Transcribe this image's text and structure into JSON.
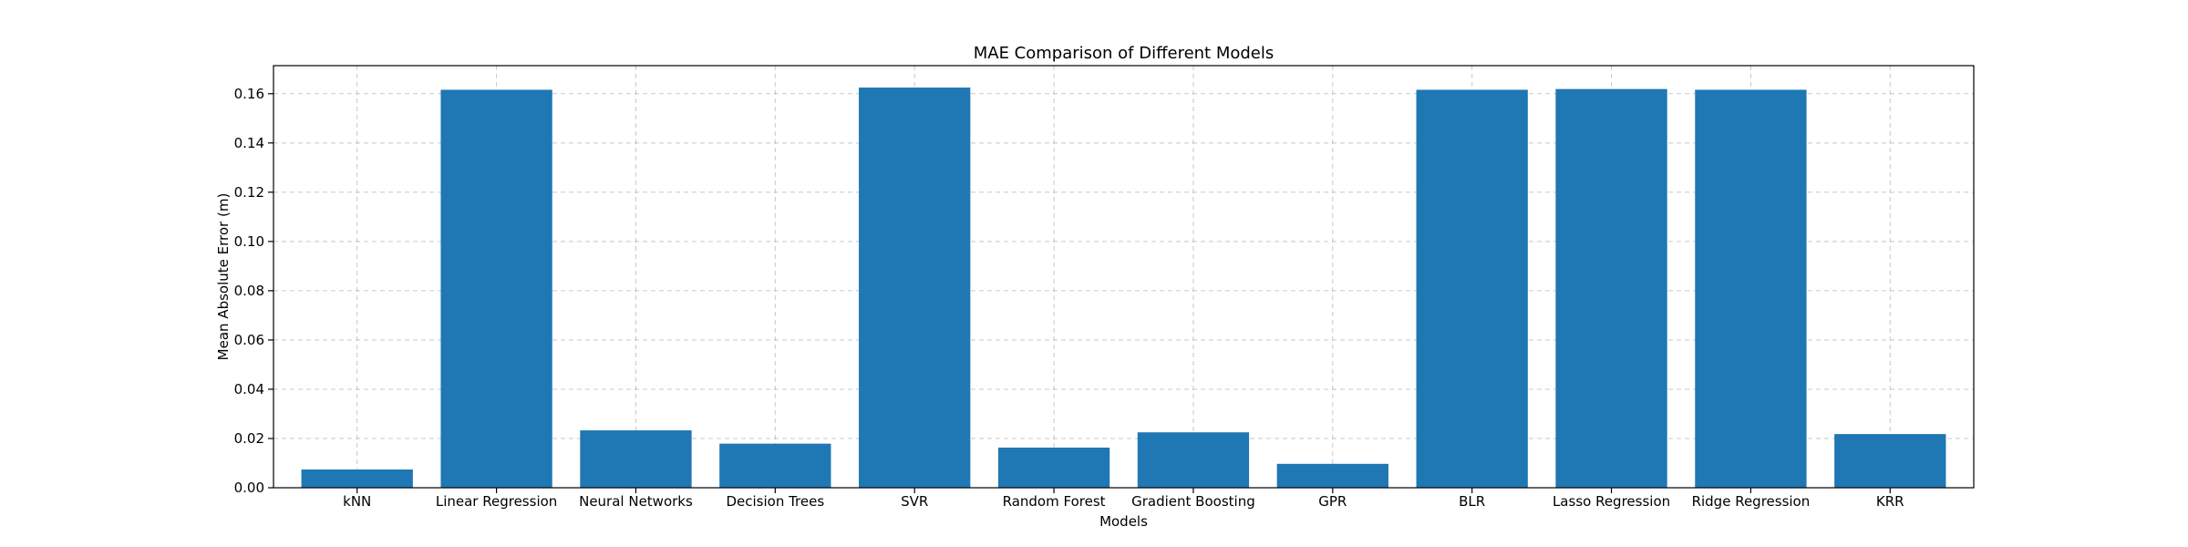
{
  "chart_data": {
    "type": "bar",
    "title": "MAE Comparison of Different Models",
    "xlabel": "Models",
    "ylabel": "Mean Absolute Error (m)",
    "categories": [
      "kNN",
      "Linear Regression",
      "Neural Networks",
      "Decision Trees",
      "SVR",
      "Random Forest",
      "Gradient Boosting",
      "GPR",
      "BLR",
      "Lasso Regression",
      "Ridge Regression",
      "KRR"
    ],
    "values": [
      0.0074,
      0.1616,
      0.0233,
      0.0179,
      0.1625,
      0.0163,
      0.0225,
      0.0097,
      0.1616,
      0.1619,
      0.1616,
      0.0218
    ],
    "ylim": [
      0,
      0.1714
    ],
    "yticks": [
      0.0,
      0.02,
      0.04,
      0.06,
      0.08,
      0.1,
      0.12,
      0.14,
      0.16
    ],
    "ytick_labels": [
      "0.00",
      "0.02",
      "0.04",
      "0.06",
      "0.08",
      "0.10",
      "0.12",
      "0.14",
      "0.16"
    ],
    "grid": true,
    "bar_color": "#1f77b4"
  }
}
